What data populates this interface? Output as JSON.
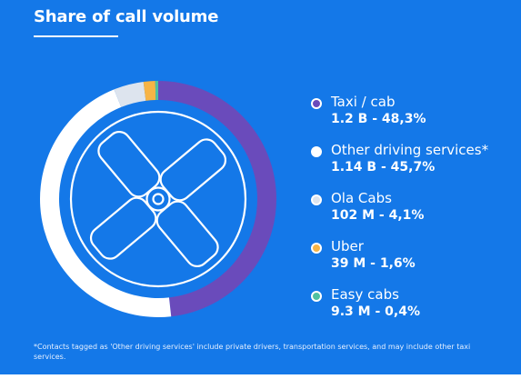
{
  "colors": {
    "background": "#1478e8",
    "taxi": "#6a4bbb",
    "other": "#ffffff",
    "ola": "#dde4ee",
    "uber": "#f7b446",
    "easy": "#4fc1a1"
  },
  "chart_data": {
    "type": "pie",
    "title": "Share of call volume",
    "series": [
      {
        "name": "Taxi / cab",
        "value": 48.3,
        "value_label": "1.2 B - 48,3%",
        "color": "#6a4bbb"
      },
      {
        "name": "Other driving services*",
        "value": 45.7,
        "value_label": "1.14 B - 45,7%",
        "color": "#ffffff"
      },
      {
        "name": "Ola Cabs",
        "value": 4.1,
        "value_label": "102 M - 4,1%",
        "color": "#dde4ee"
      },
      {
        "name": "Uber",
        "value": 1.6,
        "value_label": "39 M - 1,6%",
        "color": "#f7b446"
      },
      {
        "name": "Easy cabs",
        "value": 0.4,
        "value_label": "9.3 M - 0,4%",
        "color": "#4fc1a1"
      }
    ],
    "legend_position": "right",
    "footnote": "*Contacts tagged as 'Other driving services' include private drivers, transportation services, and may include other taxi services."
  },
  "decorations": {
    "center_icon": "steering-wheel-icon"
  }
}
